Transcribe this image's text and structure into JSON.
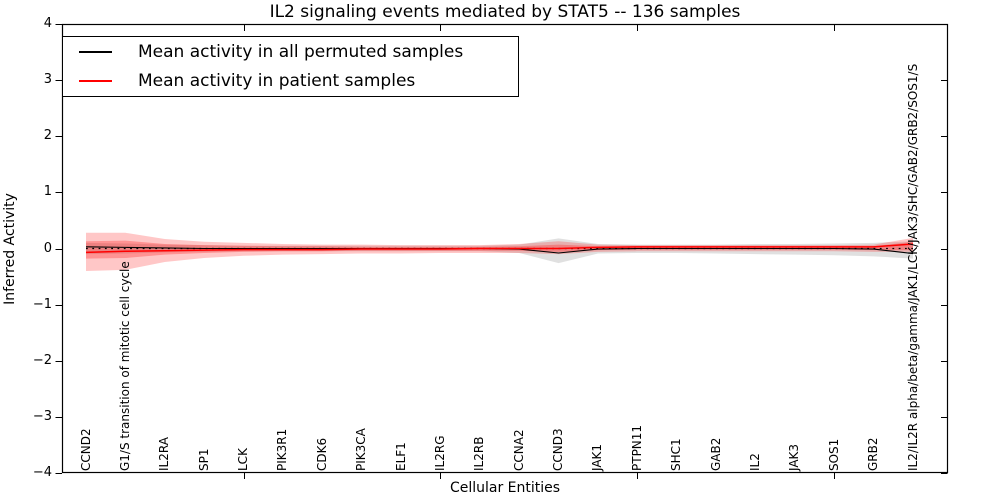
{
  "title": "IL2 signaling events mediated by STAT5 -- 136 samples",
  "legend": {
    "items": [
      {
        "label": "Mean activity in all permuted samples",
        "color": "#000000"
      },
      {
        "label": "Mean activity in patient samples",
        "color": "#ff0000"
      }
    ]
  },
  "chart_data": {
    "type": "line",
    "title": "IL2 signaling events mediated by STAT5 -- 136 samples",
    "xlabel": "Cellular Entities",
    "ylabel": "Inferred Activity",
    "ylim": [
      -4,
      4
    ],
    "grid": false,
    "legend_position": "upper left",
    "ytick_labels": [
      "4",
      "3",
      "2",
      "1",
      "0",
      "−1",
      "−2",
      "−3",
      "−4"
    ],
    "xticks": [
      5,
      10,
      15,
      20
    ],
    "categories": [
      "CCND2",
      "G1/S transition of mitotic cell cycle",
      "IL2RA",
      "SP1",
      "LCK",
      "PIK3R1",
      "CDK6",
      "PIK3CA",
      "ELF1",
      "IL2RG",
      "IL2RB",
      "CCNA2",
      "CCND3",
      "JAK1",
      "PTPN11",
      "SHC1",
      "GAB2",
      "IL2",
      "JAK3",
      "SOS1",
      "GRB2",
      "IL2/IL2R alpha/beta/gamma/JAK1/LCK/JAK3/SHC/GAB2/GRB2/SOS1/S"
    ],
    "series": [
      {
        "name": "Mean activity in all permuted samples",
        "color": "#000000",
        "values": [
          0.03,
          0.02,
          0.01,
          0.0,
          0.0,
          0.0,
          0.0,
          0.0,
          0.0,
          0.0,
          0.0,
          -0.01,
          -0.08,
          -0.01,
          0.0,
          0.0,
          0.0,
          0.0,
          0.0,
          0.0,
          -0.01,
          -0.09
        ]
      },
      {
        "name": "Mean activity in patient samples",
        "color": "#ff0000",
        "values": [
          -0.07,
          -0.05,
          -0.04,
          -0.03,
          -0.02,
          -0.02,
          -0.02,
          -0.01,
          -0.01,
          -0.01,
          0.0,
          0.0,
          0.0,
          0.02,
          0.03,
          0.03,
          0.03,
          0.03,
          0.03,
          0.03,
          0.03,
          0.08
        ]
      }
    ],
    "zero_reference_line": 0,
    "bands": [
      {
        "name": "permuted-range",
        "color": "#000000",
        "opacity": 0.12,
        "upper": [
          0.1,
          0.09,
          0.07,
          0.06,
          0.05,
          0.05,
          0.05,
          0.05,
          0.05,
          0.05,
          0.05,
          0.07,
          0.18,
          0.08,
          0.07,
          0.07,
          0.07,
          0.08,
          0.08,
          0.09,
          0.1,
          0.13
        ],
        "lower": [
          -0.1,
          -0.09,
          -0.07,
          -0.06,
          -0.05,
          -0.05,
          -0.05,
          -0.05,
          -0.05,
          -0.05,
          -0.05,
          -0.08,
          -0.26,
          -0.09,
          -0.08,
          -0.08,
          -0.09,
          -0.1,
          -0.11,
          -0.12,
          -0.14,
          -0.18
        ]
      },
      {
        "name": "patient-outer",
        "color": "#ff0000",
        "opacity": 0.22,
        "upper": [
          0.28,
          0.28,
          0.17,
          0.12,
          0.1,
          0.08,
          0.07,
          0.07,
          0.06,
          0.06,
          0.06,
          0.08,
          0.13,
          0.07,
          0.06,
          0.06,
          0.06,
          0.06,
          0.06,
          0.06,
          0.07,
          0.19
        ],
        "lower": [
          -0.4,
          -0.38,
          -0.24,
          -0.17,
          -0.13,
          -0.11,
          -0.1,
          -0.09,
          -0.09,
          -0.08,
          -0.08,
          -0.08,
          -0.1,
          -0.06,
          -0.05,
          -0.05,
          -0.05,
          -0.05,
          -0.05,
          -0.05,
          -0.06,
          -0.06
        ]
      },
      {
        "name": "patient-inner",
        "color": "#ff0000",
        "opacity": 0.26,
        "upper": [
          0.13,
          0.14,
          0.08,
          0.06,
          0.05,
          0.04,
          0.04,
          0.03,
          0.03,
          0.03,
          0.03,
          0.04,
          0.07,
          0.04,
          0.03,
          0.03,
          0.03,
          0.03,
          0.03,
          0.03,
          0.04,
          0.12
        ],
        "lower": [
          -0.18,
          -0.17,
          -0.11,
          -0.08,
          -0.06,
          -0.05,
          -0.05,
          -0.04,
          -0.04,
          -0.04,
          -0.04,
          -0.04,
          -0.06,
          -0.03,
          -0.02,
          -0.02,
          -0.02,
          -0.02,
          -0.02,
          -0.02,
          -0.03,
          -0.03
        ]
      }
    ]
  }
}
